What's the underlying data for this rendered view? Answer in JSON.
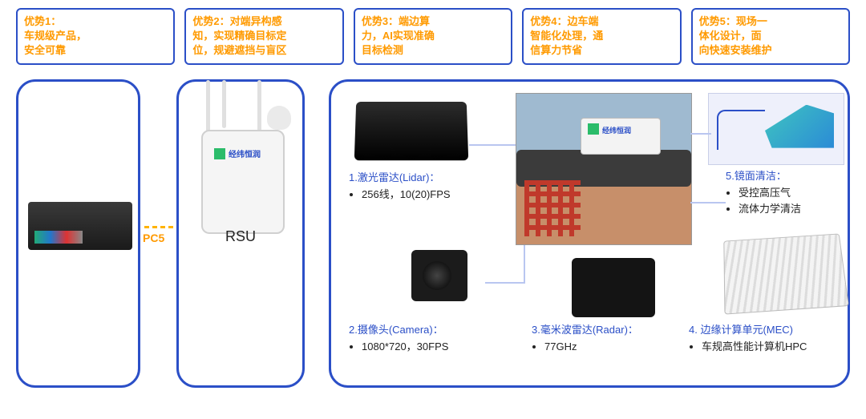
{
  "advantages": [
    "优势1：\n车规级产品，\n安全可靠",
    "优势2：对端异构感\n知，实现精确目标定\n位，规避遮挡与盲区",
    "优势3：端边算\n力，AI实现准确\n目标检测",
    "优势4：边车端\n智能化处理，通\n信算力节省",
    "优势5：现场一\n体化设计，面\n向快速安装维护"
  ],
  "link_label": "PC5",
  "rsu_label": "RSU",
  "logo_text": "经纬恒润",
  "specs": {
    "lidar": {
      "head": "1.激光雷达(Lidar)：",
      "items": [
        "256线，10(20)FPS"
      ]
    },
    "camera": {
      "head": "2.摄像头(Camera)：",
      "items": [
        "1080*720，30FPS"
      ]
    },
    "radar": {
      "head": "3.毫米波雷达(Radar)：",
      "items": [
        "77GHz"
      ]
    },
    "mec": {
      "head": "4. 边缘计算单元(MEC)",
      "items": [
        "车规高性能计算机HPC"
      ]
    },
    "clean": {
      "head": "5.镜面清洁：",
      "items": [
        "受控高压气",
        "流体力学清洁"
      ]
    }
  },
  "colors": {
    "border": "#2b4fc7",
    "accent": "#ff9a00",
    "link": "#ffb300",
    "conn": "#b9c6f0"
  }
}
